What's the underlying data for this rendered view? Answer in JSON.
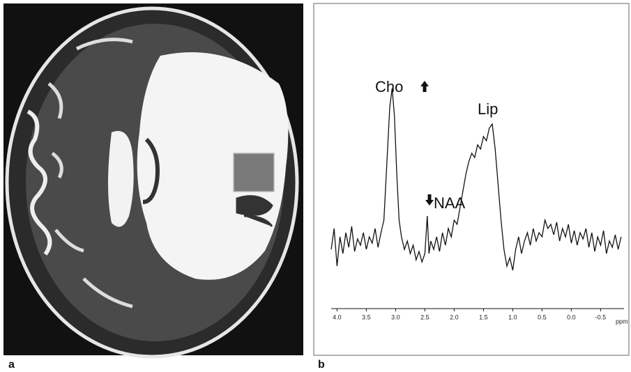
{
  "panel_labels": [
    "a",
    "b"
  ],
  "chart_data": {
    "type": "line",
    "x_unit_label": "ppm",
    "annotations": [
      "Cho",
      "NAA",
      "Lip"
    ],
    "color": "#111111",
    "xlim": [
      4.1,
      -0.9
    ],
    "ylim": [
      0,
      100
    ],
    "xticks": [
      {
        "value": 4,
        "label": "4.0"
      },
      3.5,
      {
        "value": 3,
        "label": "3.0"
      },
      2.5,
      {
        "value": 2,
        "label": "2.0"
      },
      1.5,
      {
        "value": 1,
        "label": "1.0"
      },
      0.5,
      {
        "value": 0,
        "label": "0.0"
      },
      -0.5
    ],
    "x": [
      4.1,
      4.05,
      4.0,
      3.95,
      3.9,
      3.85,
      3.8,
      3.75,
      3.7,
      3.65,
      3.6,
      3.55,
      3.5,
      3.45,
      3.4,
      3.35,
      3.3,
      3.25,
      3.2,
      3.15,
      3.1,
      3.06,
      3.02,
      2.98,
      2.94,
      2.9,
      2.85,
      2.8,
      2.75,
      2.7,
      2.65,
      2.6,
      2.55,
      2.5,
      2.46,
      2.43,
      2.4,
      2.35,
      2.3,
      2.25,
      2.2,
      2.15,
      2.1,
      2.05,
      2.0,
      1.95,
      1.9,
      1.85,
      1.8,
      1.75,
      1.7,
      1.65,
      1.6,
      1.55,
      1.5,
      1.45,
      1.4,
      1.35,
      1.3,
      1.25,
      1.2,
      1.15,
      1.1,
      1.05,
      1.0,
      0.95,
      0.9,
      0.85,
      0.8,
      0.75,
      0.7,
      0.65,
      0.6,
      0.55,
      0.5,
      0.45,
      0.4,
      0.35,
      0.3,
      0.25,
      0.2,
      0.15,
      0.1,
      0.05,
      0.0,
      -0.05,
      -0.1,
      -0.15,
      -0.2,
      -0.25,
      -0.3,
      -0.35,
      -0.4,
      -0.45,
      -0.5,
      -0.55,
      -0.6,
      -0.65,
      -0.7,
      -0.75,
      -0.8,
      -0.85
    ],
    "values": [
      14,
      24,
      6,
      20,
      12,
      22,
      15,
      25,
      13,
      19,
      16,
      22,
      14,
      20,
      17,
      24,
      15,
      22,
      28,
      55,
      82,
      91,
      78,
      50,
      28,
      20,
      14,
      18,
      12,
      16,
      9,
      13,
      8,
      12,
      30,
      12,
      18,
      14,
      20,
      13,
      22,
      16,
      24,
      20,
      28,
      26,
      34,
      42,
      50,
      56,
      60,
      58,
      64,
      62,
      68,
      66,
      72,
      74,
      62,
      45,
      28,
      14,
      6,
      10,
      4,
      14,
      20,
      12,
      18,
      22,
      16,
      24,
      18,
      22,
      20,
      28,
      24,
      26,
      21,
      27,
      18,
      24,
      20,
      26,
      17,
      23,
      16,
      22,
      19,
      24,
      15,
      22,
      13,
      20,
      16,
      23,
      12,
      18,
      15,
      21,
      14,
      20
    ]
  }
}
